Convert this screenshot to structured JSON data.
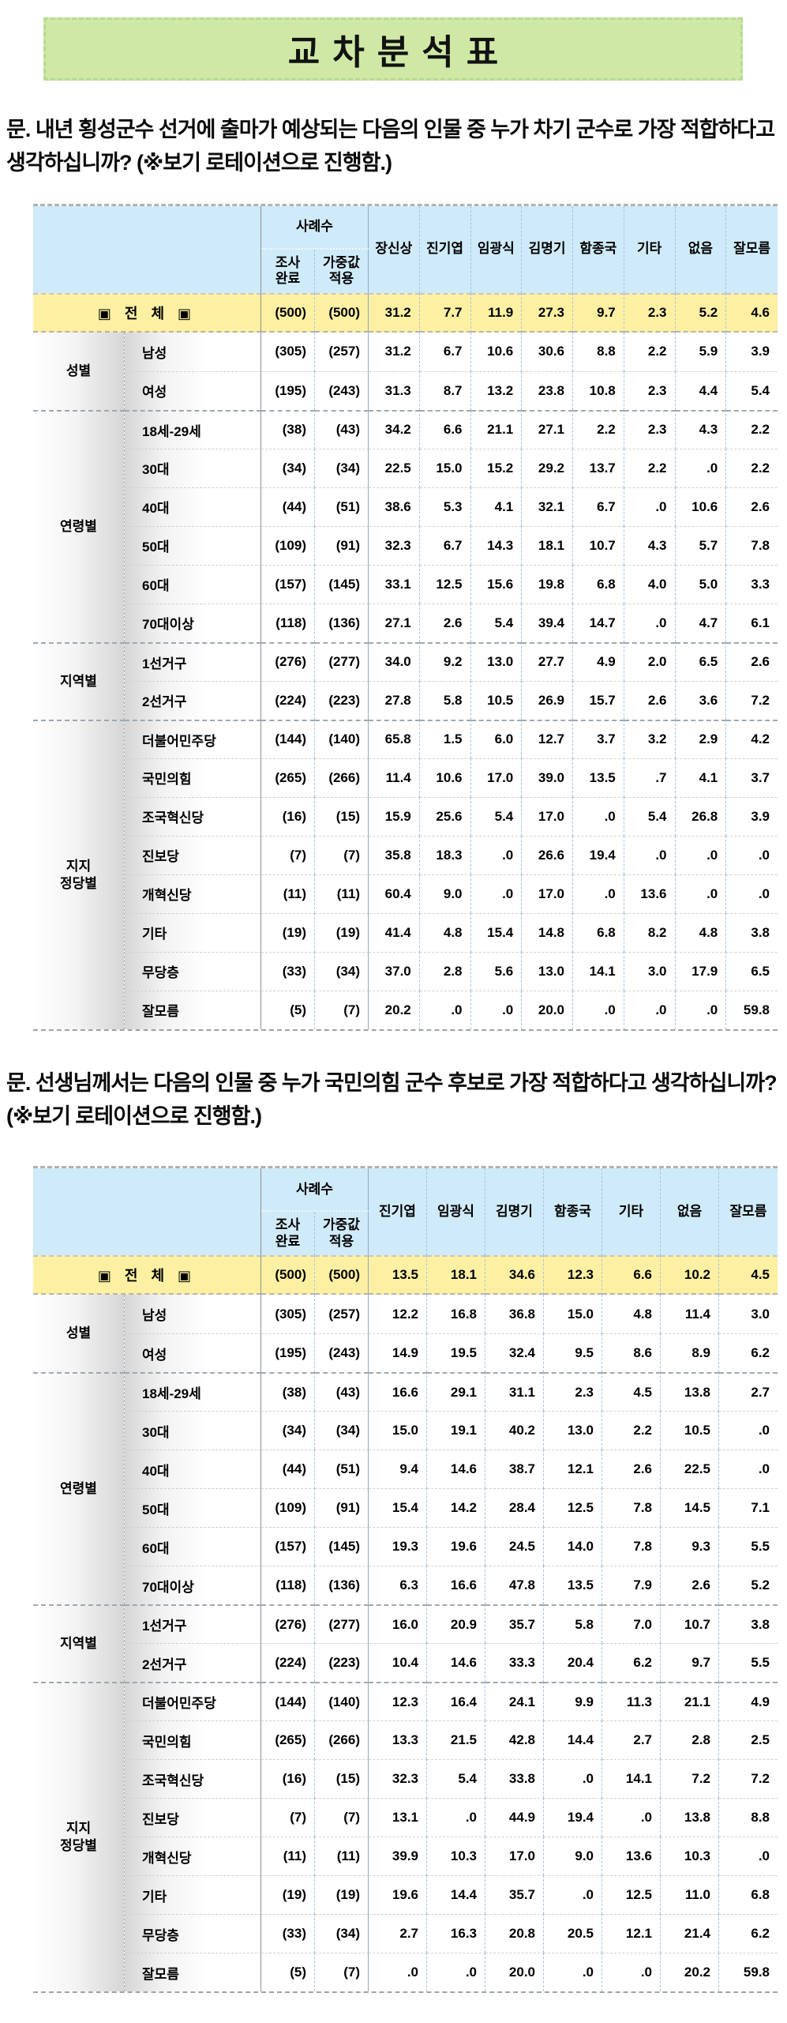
{
  "title": "교차분석표",
  "colors": {
    "title_bg": "#cfe8a6",
    "header_bg": "#cfeaf8",
    "total_bg": "#fdf0a2"
  },
  "questions": [
    {
      "text": "문. 내년 횡성군수 선거에 출마가 예상되는 다음의 인물 중 누가 차기 군수로 가장 적합하다고 생각하십니까? (※보기 로테이션으로 진행함.)"
    },
    {
      "text": "문. 선생님께서는 다음의 인물 중 누가 국민의힘 군수 후보로 가장 적합하다고 생각하십니까? (※보기 로테이션으로 진행함.)"
    }
  ],
  "tables": [
    {
      "header": {
        "case_group": "사례수",
        "case_cols": [
          "조사\n완료",
          "가중값\n적용"
        ],
        "answer_cols": [
          "장신상",
          "진기엽",
          "임광식",
          "김명기",
          "함종국",
          "기타",
          "없음",
          "잘모름"
        ]
      },
      "total_row": {
        "label": "▣ 전 체 ▣",
        "cases": [
          "(500)",
          "(500)"
        ],
        "values": [
          "31.2",
          "7.7",
          "11.9",
          "27.3",
          "9.7",
          "2.3",
          "5.2",
          "4.6"
        ]
      },
      "groups": [
        {
          "label": "성별",
          "rows": [
            {
              "label": "남성",
              "cases": [
                "(305)",
                "(257)"
              ],
              "values": [
                "31.2",
                "6.7",
                "10.6",
                "30.6",
                "8.8",
                "2.2",
                "5.9",
                "3.9"
              ]
            },
            {
              "label": "여성",
              "cases": [
                "(195)",
                "(243)"
              ],
              "values": [
                "31.3",
                "8.7",
                "13.2",
                "23.8",
                "10.8",
                "2.3",
                "4.4",
                "5.4"
              ]
            }
          ]
        },
        {
          "label": "연령별",
          "rows": [
            {
              "label": "18세-29세",
              "cases": [
                "(38)",
                "(43)"
              ],
              "values": [
                "34.2",
                "6.6",
                "21.1",
                "27.1",
                "2.2",
                "2.3",
                "4.3",
                "2.2"
              ]
            },
            {
              "label": "30대",
              "cases": [
                "(34)",
                "(34)"
              ],
              "values": [
                "22.5",
                "15.0",
                "15.2",
                "29.2",
                "13.7",
                "2.2",
                ".0",
                "2.2"
              ]
            },
            {
              "label": "40대",
              "cases": [
                "(44)",
                "(51)"
              ],
              "values": [
                "38.6",
                "5.3",
                "4.1",
                "32.1",
                "6.7",
                ".0",
                "10.6",
                "2.6"
              ]
            },
            {
              "label": "50대",
              "cases": [
                "(109)",
                "(91)"
              ],
              "values": [
                "32.3",
                "6.7",
                "14.3",
                "18.1",
                "10.7",
                "4.3",
                "5.7",
                "7.8"
              ]
            },
            {
              "label": "60대",
              "cases": [
                "(157)",
                "(145)"
              ],
              "values": [
                "33.1",
                "12.5",
                "15.6",
                "19.8",
                "6.8",
                "4.0",
                "5.0",
                "3.3"
              ]
            },
            {
              "label": "70대이상",
              "cases": [
                "(118)",
                "(136)"
              ],
              "values": [
                "27.1",
                "2.6",
                "5.4",
                "39.4",
                "14.7",
                ".0",
                "4.7",
                "6.1"
              ]
            }
          ]
        },
        {
          "label": "지역별",
          "rows": [
            {
              "label": "1선거구",
              "cases": [
                "(276)",
                "(277)"
              ],
              "values": [
                "34.0",
                "9.2",
                "13.0",
                "27.7",
                "4.9",
                "2.0",
                "6.5",
                "2.6"
              ]
            },
            {
              "label": "2선거구",
              "cases": [
                "(224)",
                "(223)"
              ],
              "values": [
                "27.8",
                "5.8",
                "10.5",
                "26.9",
                "15.7",
                "2.6",
                "3.6",
                "7.2"
              ]
            }
          ]
        },
        {
          "label": "지지\n정당별",
          "rows": [
            {
              "label": "더불어민주당",
              "cases": [
                "(144)",
                "(140)"
              ],
              "values": [
                "65.8",
                "1.5",
                "6.0",
                "12.7",
                "3.7",
                "3.2",
                "2.9",
                "4.2"
              ]
            },
            {
              "label": "국민의힘",
              "cases": [
                "(265)",
                "(266)"
              ],
              "values": [
                "11.4",
                "10.6",
                "17.0",
                "39.0",
                "13.5",
                ".7",
                "4.1",
                "3.7"
              ]
            },
            {
              "label": "조국혁신당",
              "cases": [
                "(16)",
                "(15)"
              ],
              "values": [
                "15.9",
                "25.6",
                "5.4",
                "17.0",
                ".0",
                "5.4",
                "26.8",
                "3.9"
              ]
            },
            {
              "label": "진보당",
              "cases": [
                "(7)",
                "(7)"
              ],
              "values": [
                "35.8",
                "18.3",
                ".0",
                "26.6",
                "19.4",
                ".0",
                ".0",
                ".0"
              ]
            },
            {
              "label": "개혁신당",
              "cases": [
                "(11)",
                "(11)"
              ],
              "values": [
                "60.4",
                "9.0",
                ".0",
                "17.0",
                ".0",
                "13.6",
                ".0",
                ".0"
              ]
            },
            {
              "label": "기타",
              "cases": [
                "(19)",
                "(19)"
              ],
              "values": [
                "41.4",
                "4.8",
                "15.4",
                "14.8",
                "6.8",
                "8.2",
                "4.8",
                "3.8"
              ]
            },
            {
              "label": "무당층",
              "cases": [
                "(33)",
                "(34)"
              ],
              "values": [
                "37.0",
                "2.8",
                "5.6",
                "13.0",
                "14.1",
                "3.0",
                "17.9",
                "6.5"
              ]
            },
            {
              "label": "잘모름",
              "cases": [
                "(5)",
                "(7)"
              ],
              "values": [
                "20.2",
                ".0",
                ".0",
                "20.0",
                ".0",
                ".0",
                ".0",
                "59.8"
              ]
            }
          ]
        }
      ]
    },
    {
      "header": {
        "case_group": "사례수",
        "case_cols": [
          "조사\n완료",
          "가중값\n적용"
        ],
        "answer_cols": [
          "진기엽",
          "임광식",
          "김명기",
          "함종국",
          "기타",
          "없음",
          "잘모름"
        ]
      },
      "total_row": {
        "label": "▣ 전 체 ▣",
        "cases": [
          "(500)",
          "(500)"
        ],
        "values": [
          "13.5",
          "18.1",
          "34.6",
          "12.3",
          "6.6",
          "10.2",
          "4.5"
        ]
      },
      "groups": [
        {
          "label": "성별",
          "rows": [
            {
              "label": "남성",
              "cases": [
                "(305)",
                "(257)"
              ],
              "values": [
                "12.2",
                "16.8",
                "36.8",
                "15.0",
                "4.8",
                "11.4",
                "3.0"
              ]
            },
            {
              "label": "여성",
              "cases": [
                "(195)",
                "(243)"
              ],
              "values": [
                "14.9",
                "19.5",
                "32.4",
                "9.5",
                "8.6",
                "8.9",
                "6.2"
              ]
            }
          ]
        },
        {
          "label": "연령별",
          "rows": [
            {
              "label": "18세-29세",
              "cases": [
                "(38)",
                "(43)"
              ],
              "values": [
                "16.6",
                "29.1",
                "31.1",
                "2.3",
                "4.5",
                "13.8",
                "2.7"
              ]
            },
            {
              "label": "30대",
              "cases": [
                "(34)",
                "(34)"
              ],
              "values": [
                "15.0",
                "19.1",
                "40.2",
                "13.0",
                "2.2",
                "10.5",
                ".0"
              ]
            },
            {
              "label": "40대",
              "cases": [
                "(44)",
                "(51)"
              ],
              "values": [
                "9.4",
                "14.6",
                "38.7",
                "12.1",
                "2.6",
                "22.5",
                ".0"
              ]
            },
            {
              "label": "50대",
              "cases": [
                "(109)",
                "(91)"
              ],
              "values": [
                "15.4",
                "14.2",
                "28.4",
                "12.5",
                "7.8",
                "14.5",
                "7.1"
              ]
            },
            {
              "label": "60대",
              "cases": [
                "(157)",
                "(145)"
              ],
              "values": [
                "19.3",
                "19.6",
                "24.5",
                "14.0",
                "7.8",
                "9.3",
                "5.5"
              ]
            },
            {
              "label": "70대이상",
              "cases": [
                "(118)",
                "(136)"
              ],
              "values": [
                "6.3",
                "16.6",
                "47.8",
                "13.5",
                "7.9",
                "2.6",
                "5.2"
              ]
            }
          ]
        },
        {
          "label": "지역별",
          "rows": [
            {
              "label": "1선거구",
              "cases": [
                "(276)",
                "(277)"
              ],
              "values": [
                "16.0",
                "20.9",
                "35.7",
                "5.8",
                "7.0",
                "10.7",
                "3.8"
              ]
            },
            {
              "label": "2선거구",
              "cases": [
                "(224)",
                "(223)"
              ],
              "values": [
                "10.4",
                "14.6",
                "33.3",
                "20.4",
                "6.2",
                "9.7",
                "5.5"
              ]
            }
          ]
        },
        {
          "label": "지지\n정당별",
          "rows": [
            {
              "label": "더불어민주당",
              "cases": [
                "(144)",
                "(140)"
              ],
              "values": [
                "12.3",
                "16.4",
                "24.1",
                "9.9",
                "11.3",
                "21.1",
                "4.9"
              ]
            },
            {
              "label": "국민의힘",
              "cases": [
                "(265)",
                "(266)"
              ],
              "values": [
                "13.3",
                "21.5",
                "42.8",
                "14.4",
                "2.7",
                "2.8",
                "2.5"
              ]
            },
            {
              "label": "조국혁신당",
              "cases": [
                "(16)",
                "(15)"
              ],
              "values": [
                "32.3",
                "5.4",
                "33.8",
                ".0",
                "14.1",
                "7.2",
                "7.2"
              ]
            },
            {
              "label": "진보당",
              "cases": [
                "(7)",
                "(7)"
              ],
              "values": [
                "13.1",
                ".0",
                "44.9",
                "19.4",
                ".0",
                "13.8",
                "8.8"
              ]
            },
            {
              "label": "개혁신당",
              "cases": [
                "(11)",
                "(11)"
              ],
              "values": [
                "39.9",
                "10.3",
                "17.0",
                "9.0",
                "13.6",
                "10.3",
                ".0"
              ]
            },
            {
              "label": "기타",
              "cases": [
                "(19)",
                "(19)"
              ],
              "values": [
                "19.6",
                "14.4",
                "35.7",
                ".0",
                "12.5",
                "11.0",
                "6.8"
              ]
            },
            {
              "label": "무당층",
              "cases": [
                "(33)",
                "(34)"
              ],
              "values": [
                "2.7",
                "16.3",
                "20.8",
                "20.5",
                "12.1",
                "21.4",
                "6.2"
              ]
            },
            {
              "label": "잘모름",
              "cases": [
                "(5)",
                "(7)"
              ],
              "values": [
                ".0",
                ".0",
                "20.0",
                ".0",
                ".0",
                "20.2",
                "59.8"
              ]
            }
          ]
        }
      ]
    }
  ]
}
